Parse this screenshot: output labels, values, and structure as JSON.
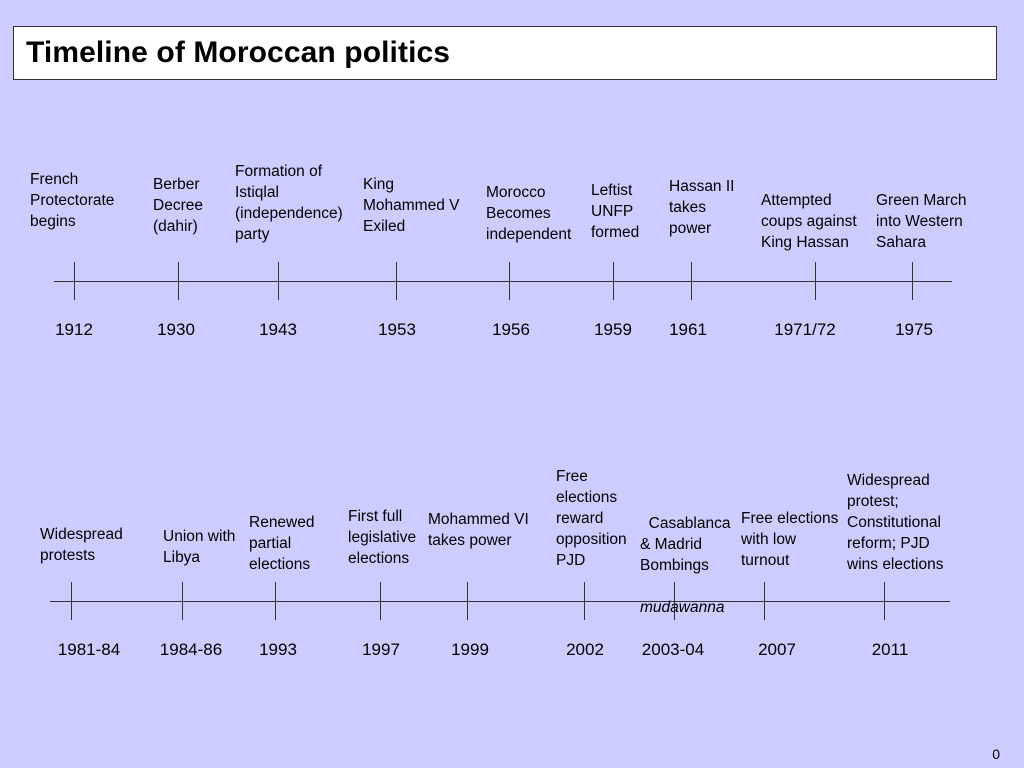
{
  "title": "Timeline of Moroccan politics",
  "page_number": "0",
  "timeline1": {
    "years": [
      "1912",
      "1930",
      "1943",
      "1953",
      "1956",
      "1959",
      "1961",
      "1971/72",
      "1975"
    ],
    "events": [
      "French\nProtectorate\nbegins",
      "Berber\nDecree\n(dahir)",
      "Formation of\nIstiqlal\n(independence)\nparty",
      "King\nMohammed V\nExiled",
      "Morocco\nBecomes\nindependent",
      "Leftist\nUNFP\nformed",
      "Hassan II\ntakes\npower",
      "Attempted\ncoups against\nKing Hassan",
      "Green March\ninto Western\nSahara"
    ]
  },
  "timeline2": {
    "years": [
      "1981-84",
      "1984-86",
      "1993",
      "1997",
      "1999",
      "2002",
      "2003-04",
      "2007",
      "2011"
    ],
    "events": [
      "Widespread\nprotests",
      "Union with\nLibya",
      "Renewed\npartial\nelections",
      "First full\nlegislative\nelections",
      "Mohammed VI\ntakes power",
      "Free\nelections\nreward\nopposition\nPJD",
      "Casablanca\n& Madrid\nBombings",
      "Free elections\nwith low\nturnout",
      "Widespread\nprotest;\nConstitutional\nreform; PJD\nwins elections"
    ],
    "event7_extra": "mudawanna"
  }
}
